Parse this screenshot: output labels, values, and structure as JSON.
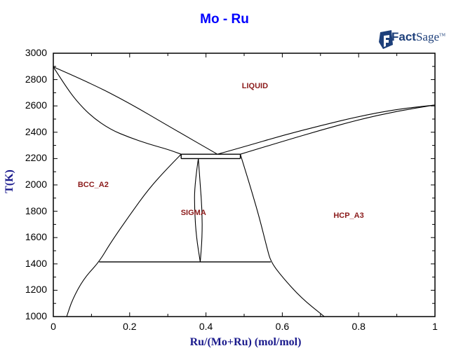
{
  "header": {
    "title": "Mo - Ru",
    "logo": {
      "name": "FactSage",
      "text_bold": "Fact",
      "text_regular": "Sage",
      "trademark": "TM"
    }
  },
  "chart_data": {
    "type": "line",
    "subtype": "binary phase diagram",
    "title": "Mo - Ru",
    "xlabel": "Ru/(Mo+Ru) (mol/mol)",
    "ylabel": "T(K)",
    "xlim": [
      0,
      1
    ],
    "ylim": [
      1000,
      3000
    ],
    "xticks": [
      "0",
      "0.2",
      "0.4",
      "0.6",
      "0.8",
      "1"
    ],
    "yticks": [
      "1000",
      "1200",
      "1400",
      "1600",
      "1800",
      "2000",
      "2200",
      "2400",
      "2600",
      "2800",
      "3000"
    ],
    "grid": false,
    "legend": null,
    "phase_labels": [
      {
        "text": "LIQUID",
        "x": 0.54,
        "T": 2745
      },
      {
        "text": "BCC_A2",
        "x": 0.11,
        "T": 1995
      },
      {
        "text": "SIGMA",
        "x": 0.38,
        "T": 1780
      },
      {
        "text": "HCP_A3",
        "x": 0.78,
        "T": 1760
      }
    ],
    "invariants": [
      {
        "type": "melting point Mo",
        "x": 0.0,
        "T": 2896
      },
      {
        "type": "melting point Ru",
        "x": 1.0,
        "T": 2607
      },
      {
        "type": "eutectic (L = BCC + HCP)",
        "x": 0.43,
        "T": 2233,
        "x_range": [
          0.335,
          0.49
        ]
      },
      {
        "type": "peritectoid (BCC + HCP = SIGMA)",
        "T": 2200,
        "x_range": [
          0.335,
          0.49
        ]
      },
      {
        "type": "eutectoid (SIGMA = BCC + HCP)",
        "T": 1415,
        "x_range": [
          0.12,
          0.57
        ]
      }
    ],
    "series": [
      {
        "name": "Liquidus (Mo side)",
        "points": [
          [
            0.0,
            2896
          ],
          [
            0.1,
            2770
          ],
          [
            0.2,
            2620
          ],
          [
            0.3,
            2450
          ],
          [
            0.43,
            2233
          ]
        ]
      },
      {
        "name": "Solidus BCC",
        "points": [
          [
            0.0,
            2896
          ],
          [
            0.03,
            2760
          ],
          [
            0.06,
            2640
          ],
          [
            0.1,
            2520
          ],
          [
            0.15,
            2420
          ],
          [
            0.2,
            2360
          ],
          [
            0.25,
            2310
          ],
          [
            0.3,
            2270
          ],
          [
            0.335,
            2233
          ]
        ]
      },
      {
        "name": "Liquidus (Ru side)",
        "points": [
          [
            0.43,
            2233
          ],
          [
            0.5,
            2290
          ],
          [
            0.6,
            2375
          ],
          [
            0.7,
            2450
          ],
          [
            0.8,
            2520
          ],
          [
            0.9,
            2575
          ],
          [
            1.0,
            2607
          ]
        ]
      },
      {
        "name": "Solidus HCP",
        "points": [
          [
            0.49,
            2233
          ],
          [
            0.6,
            2330
          ],
          [
            0.7,
            2415
          ],
          [
            0.8,
            2495
          ],
          [
            0.9,
            2560
          ],
          [
            1.0,
            2607
          ]
        ]
      },
      {
        "name": "BCC solvus",
        "points": [
          [
            0.335,
            2233
          ],
          [
            0.3,
            2130
          ],
          [
            0.25,
            1970
          ],
          [
            0.2,
            1770
          ],
          [
            0.15,
            1560
          ],
          [
            0.12,
            1415
          ],
          [
            0.08,
            1290
          ],
          [
            0.05,
            1130
          ],
          [
            0.035,
            1000
          ]
        ]
      },
      {
        "name": "HCP solvus",
        "points": [
          [
            0.49,
            2233
          ],
          [
            0.5,
            2140
          ],
          [
            0.52,
            1950
          ],
          [
            0.54,
            1750
          ],
          [
            0.56,
            1520
          ],
          [
            0.57,
            1415
          ],
          [
            0.6,
            1300
          ],
          [
            0.65,
            1140
          ],
          [
            0.71,
            1000
          ]
        ]
      },
      {
        "name": "SIGMA left boundary",
        "points": [
          [
            0.38,
            2200
          ],
          [
            0.37,
            2000
          ],
          [
            0.37,
            1800
          ],
          [
            0.375,
            1600
          ],
          [
            0.385,
            1415
          ]
        ]
      },
      {
        "name": "SIGMA right boundary",
        "points": [
          [
            0.38,
            2200
          ],
          [
            0.385,
            2000
          ],
          [
            0.39,
            1800
          ],
          [
            0.39,
            1600
          ],
          [
            0.385,
            1415
          ]
        ]
      }
    ]
  },
  "style": {
    "title_color": "#0000ff",
    "axis_label_color": "#1a1a8c",
    "phase_label_color": "#8b1a1a",
    "line_color": "#000000"
  }
}
